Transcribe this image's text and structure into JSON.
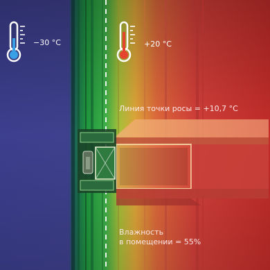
{
  "outside": {
    "temperature": "−30 °C"
  },
  "inside": {
    "temperature": "+20 °C"
  },
  "dew_point": {
    "label": "Линия точки росы = +10,7 °C"
  },
  "humidity": {
    "line1": "Влажность",
    "line2": "в помещении =  55%"
  },
  "colors": {
    "cold": "#3e3f8e",
    "insulation": "#1f9d3a",
    "warm": "#c9312c",
    "thermometer_cold": "#3aa0e6",
    "thermometer_warm": "#e5452d"
  }
}
